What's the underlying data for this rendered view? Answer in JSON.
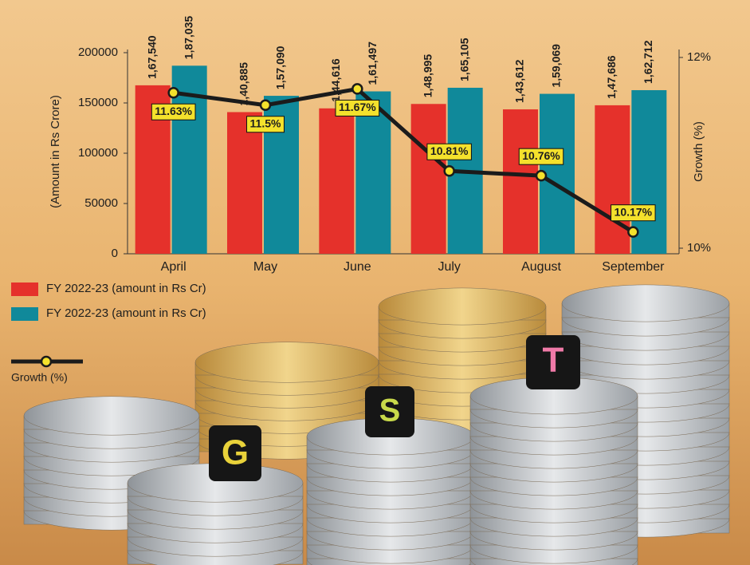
{
  "chart_data": {
    "type": "bar",
    "categories": [
      "April",
      "May",
      "June",
      "July",
      "August",
      "September"
    ],
    "ylabel": "(Amount in Rs Crore)",
    "y2label": "Growth (%)",
    "ylim": [
      0,
      200000
    ],
    "yticks": [
      0,
      50000,
      100000,
      150000,
      200000
    ],
    "y2lim": [
      10,
      12
    ],
    "y2ticks": [
      {
        "value": 10,
        "label": "10%"
      },
      {
        "value": 12,
        "label": "12%"
      }
    ],
    "series": [
      {
        "name": "FY 2022-23 (amount in Rs Cr)",
        "type": "bar",
        "color": "#e5312b",
        "values": [
          167540,
          140885,
          144616,
          148995,
          143612,
          147686
        ],
        "value_labels": [
          "1,67,540",
          "1,40,885",
          "1,44,616",
          "1,48,995",
          "1,43,612",
          "1,47,686"
        ]
      },
      {
        "name": "FY 2022-23 (amount in Rs Cr)",
        "type": "bar",
        "color": "#10899a",
        "values": [
          187035,
          157090,
          161497,
          165105,
          159069,
          162712
        ],
        "value_labels": [
          "1,87,035",
          "1,57,090",
          "1,61,497",
          "1,65,105",
          "1,59,069",
          "1,62,712"
        ]
      },
      {
        "name": "Growth (%)",
        "type": "line",
        "axis": "y2",
        "color": "#1b1b1b",
        "marker_color": "#f4e12c",
        "values": [
          11.63,
          11.5,
          11.67,
          10.81,
          10.76,
          10.17
        ],
        "value_labels": [
          "11.63%",
          "11.5%",
          "11.67%",
          "10.81%",
          "10.76%",
          "10.17%"
        ]
      }
    ],
    "annotations": [
      "G",
      "S",
      "T"
    ]
  }
}
